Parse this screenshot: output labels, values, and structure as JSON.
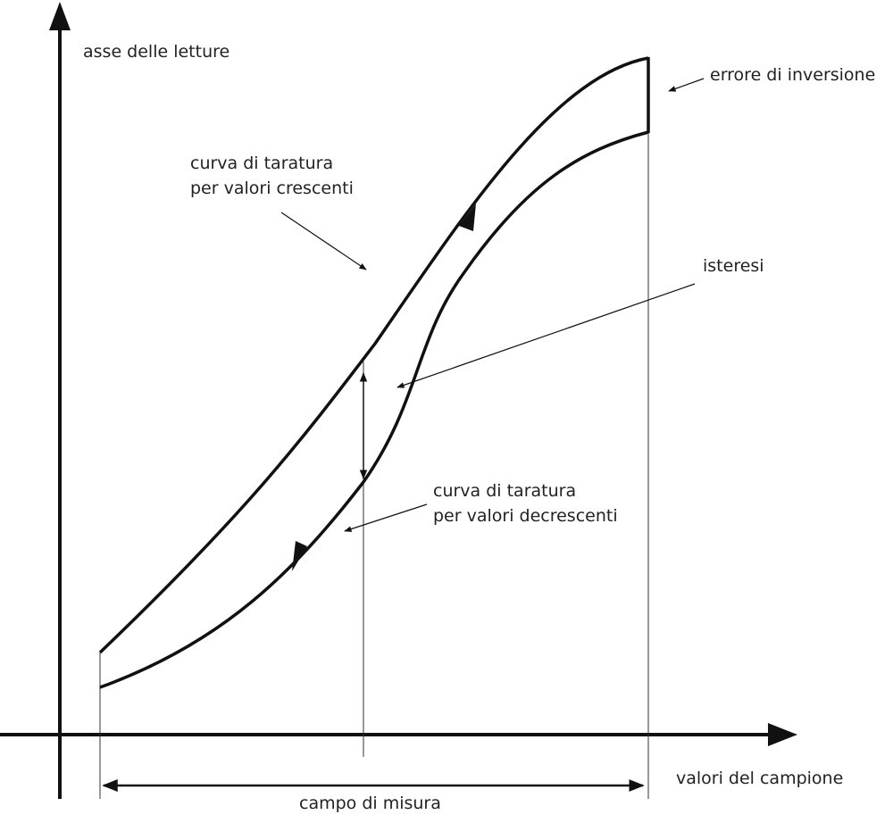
{
  "labels": {
    "y_axis": "asse delle letture",
    "x_axis": "valori del campione",
    "range": "campo di misura",
    "inversion_error": "errore di inversione",
    "hysteresis": "isteresi",
    "increasing": [
      "curva di taratura",
      "per valori crescenti"
    ],
    "decreasing": [
      "curva di taratura",
      "per valori decrescenti"
    ]
  }
}
